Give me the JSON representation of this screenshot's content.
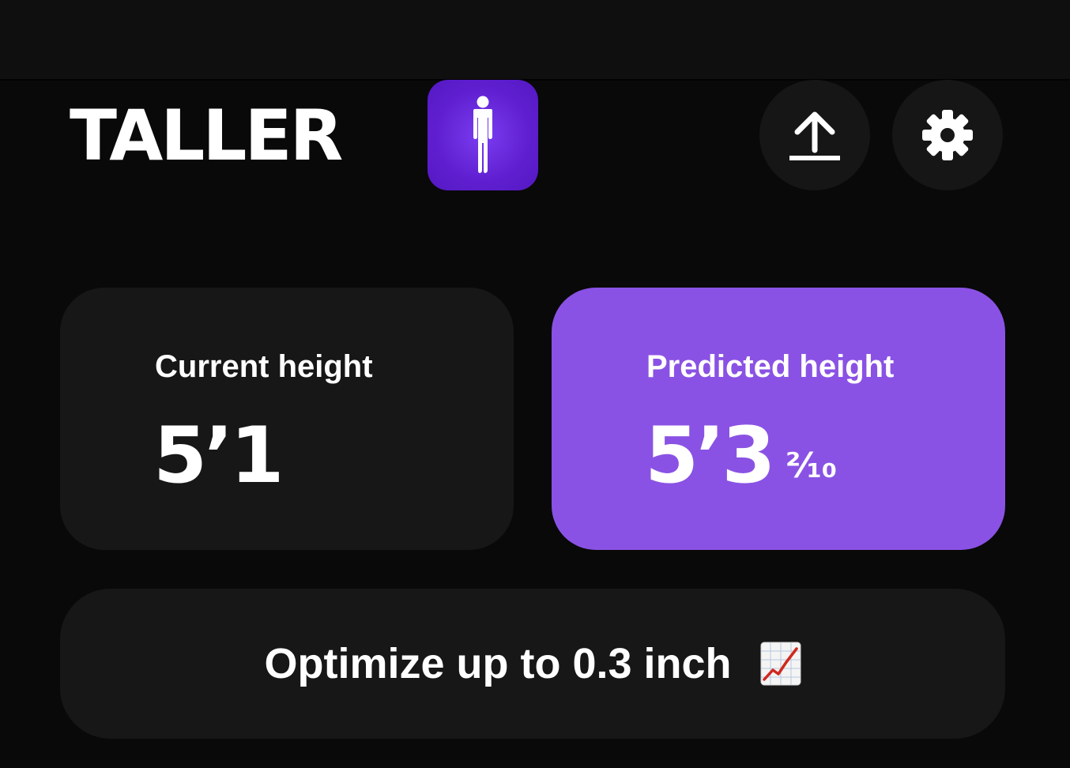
{
  "header": {
    "app_title": "TALLER",
    "logo_icon": "person-standing-icon",
    "upload_icon": "upload-icon",
    "settings_icon": "gear-icon",
    "accent_color": "#5f1fd0"
  },
  "cards": {
    "current": {
      "label": "Current height",
      "value": "5’1"
    },
    "predicted": {
      "label": "Predicted height",
      "value": "5’3",
      "fraction": "²⁄₁₀",
      "background_color": "#8a52e4"
    }
  },
  "optimize": {
    "text": "Optimize up to 0.3 inch",
    "icon": "chart-increasing-icon"
  }
}
